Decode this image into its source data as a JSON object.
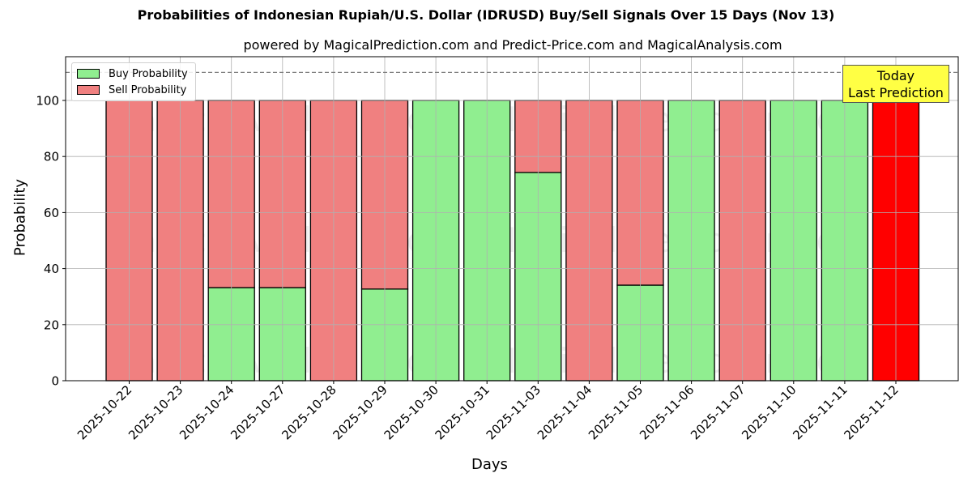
{
  "chart_data": {
    "type": "bar",
    "stacked": true,
    "title": "Probabilities of Indonesian Rupiah/U.S. Dollar (IDRUSD) Buy/Sell Signals Over 15 Days (Nov 13)",
    "subtitle": "powered by MagicalPrediction.com and Predict-Price.com and MagicalAnalysis.com",
    "xlabel": "Days",
    "ylabel": "Probability",
    "ylim": [
      0,
      115.6
    ],
    "yticks": [
      0,
      20,
      40,
      60,
      80,
      100
    ],
    "grid": true,
    "legend_position": "upper left",
    "reference_line": {
      "y": 110,
      "style": "dashed",
      "color": "#808080"
    },
    "categories": [
      "2025-10-22",
      "2025-10-23",
      "2025-10-24",
      "2025-10-27",
      "2025-10-28",
      "2025-10-29",
      "2025-10-30",
      "2025-10-31",
      "2025-11-03",
      "2025-11-04",
      "2025-11-05",
      "2025-11-06",
      "2025-11-07",
      "2025-11-10",
      "2025-11-11",
      "2025-11-12"
    ],
    "series": [
      {
        "name": "Buy Probability",
        "color": "#90ee90",
        "values": [
          0,
          0,
          33.2,
          33.2,
          0,
          32.7,
          100,
          100,
          74.3,
          0,
          34.1,
          100,
          0,
          100,
          100,
          0
        ]
      },
      {
        "name": "Sell Probability",
        "color": "#f08080",
        "values": [
          100,
          100,
          66.8,
          66.8,
          100,
          67.3,
          0,
          0,
          25.7,
          100,
          65.9,
          0,
          100,
          0,
          0,
          100
        ]
      }
    ],
    "highlight": {
      "category": "2025-11-12",
      "color": "#ff0000",
      "label": "Today\nLast Prediction"
    },
    "watermarks": [
      "MagicalAnalysis.com",
      "MagicalPrediction.com"
    ]
  },
  "legend": {
    "buy_label": "Buy Probability",
    "sell_label": "Sell Probability"
  },
  "annotation": {
    "line1": "Today",
    "line2": "Last Prediction"
  },
  "colors": {
    "buy": "#90ee90",
    "sell": "#f08080",
    "today": "#ff0000",
    "annotation_bg": "#ffff44",
    "grid": "#b0b0b0"
  }
}
